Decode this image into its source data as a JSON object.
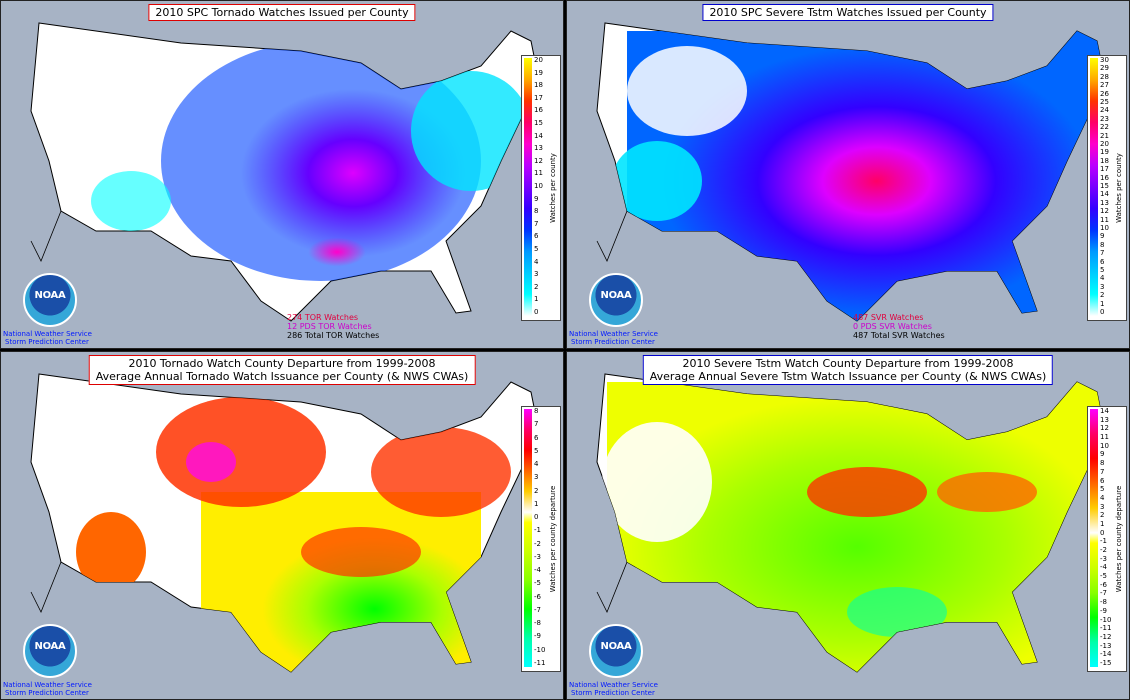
{
  "panels": [
    {
      "title_lines": [
        "2010 SPC Tornado Watches Issued per County"
      ],
      "border_color": "#dd0000",
      "legend_label": "Watches per county",
      "legend_ticks": [
        "20",
        "19",
        "18",
        "17",
        "16",
        "15",
        "14",
        "13",
        "12",
        "11",
        "10",
        "9",
        "8",
        "7",
        "6",
        "5",
        "4",
        "3",
        "2",
        "1",
        "0"
      ],
      "stats": [
        {
          "text": "274 TOR Watches",
          "color": "#e0003c"
        },
        {
          "text": "12 PDS TOR Watches",
          "color": "#cc00cc"
        },
        {
          "text": "286 Total TOR Watches",
          "color": "#000000"
        }
      ],
      "logo_text": "NOAA",
      "org_lines": [
        "National Weather Service",
        "Storm Prediction Center"
      ]
    },
    {
      "title_lines": [
        "2010 SPC Severe Tstm Watches Issued per County"
      ],
      "border_color": "#0000cc",
      "legend_label": "Watches per county",
      "legend_ticks": [
        "30",
        "29",
        "28",
        "27",
        "26",
        "25",
        "24",
        "23",
        "22",
        "21",
        "20",
        "19",
        "18",
        "17",
        "16",
        "15",
        "14",
        "13",
        "12",
        "11",
        "10",
        "9",
        "8",
        "7",
        "6",
        "5",
        "4",
        "3",
        "2",
        "1",
        "0"
      ],
      "stats": [
        {
          "text": "487 SVR Watches",
          "color": "#e0003c"
        },
        {
          "text": "0 PDS SVR Watches",
          "color": "#cc00cc"
        },
        {
          "text": "487 Total SVR Watches",
          "color": "#000000"
        }
      ],
      "logo_text": "NOAA",
      "org_lines": [
        "National Weather Service",
        "Storm Prediction Center"
      ]
    },
    {
      "title_lines": [
        "2010 Tornado Watch County Departure from 1999-2008",
        "Average Annual Tornado Watch Issuance per County (& NWS CWAs)"
      ],
      "border_color": "#dd0000",
      "legend_label": "Watches per county departure",
      "legend_ticks": [
        "8",
        "7",
        "6",
        "5",
        "4",
        "3",
        "2",
        "1",
        "0",
        "-1",
        "-2",
        "-3",
        "-4",
        "-5",
        "-6",
        "-7",
        "-8",
        "-9",
        "-10",
        "-11"
      ],
      "stats": [],
      "logo_text": "NOAA",
      "org_lines": [
        "National Weather Service",
        "Storm Prediction Center"
      ]
    },
    {
      "title_lines": [
        "2010 Severe Tstm Watch County Departure from 1999-2008",
        "Average Annual Severe Tstm Watch Issuance per County (& NWS CWAs)"
      ],
      "border_color": "#0000cc",
      "legend_label": "Watches per county departure",
      "legend_ticks": [
        "14",
        "13",
        "12",
        "11",
        "10",
        "9",
        "8",
        "7",
        "6",
        "5",
        "4",
        "3",
        "2",
        "1",
        "0",
        "-1",
        "-2",
        "-3",
        "-4",
        "-5",
        "-6",
        "-7",
        "-8",
        "-9",
        "-10",
        "-11",
        "-12",
        "-13",
        "-14",
        "-15"
      ],
      "stats": [],
      "logo_text": "NOAA",
      "org_lines": [
        "National Weather Service",
        "Storm Prediction Center"
      ]
    }
  ],
  "colors": {
    "ocean": "#a7b3c5",
    "land": "#ffffff",
    "count_scale": [
      "#ffffff",
      "#00ffff",
      "#00e5ff",
      "#00ccff",
      "#0099ff",
      "#0066ff",
      "#0033ff",
      "#0000ff",
      "#3300ff",
      "#5500ff",
      "#7700ff",
      "#9900ff",
      "#bb00ff",
      "#dd00ff",
      "#ff00cc",
      "#ff0099",
      "#ff0066",
      "#ff3300",
      "#ff6600",
      "#ffaa00",
      "#ffff00"
    ],
    "departure_scale": [
      "#ff00ff",
      "#ff0066",
      "#ff0000",
      "#ff3300",
      "#ff6600",
      "#ff9900",
      "#ffcc00",
      "#ffee00",
      "#ffffff",
      "#ffff00",
      "#eeff00",
      "#ccff00",
      "#aaff00",
      "#88ff00",
      "#55ff00",
      "#00ff00",
      "#00ff55",
      "#00ffaa",
      "#00ffdd",
      "#00ffff"
    ]
  }
}
